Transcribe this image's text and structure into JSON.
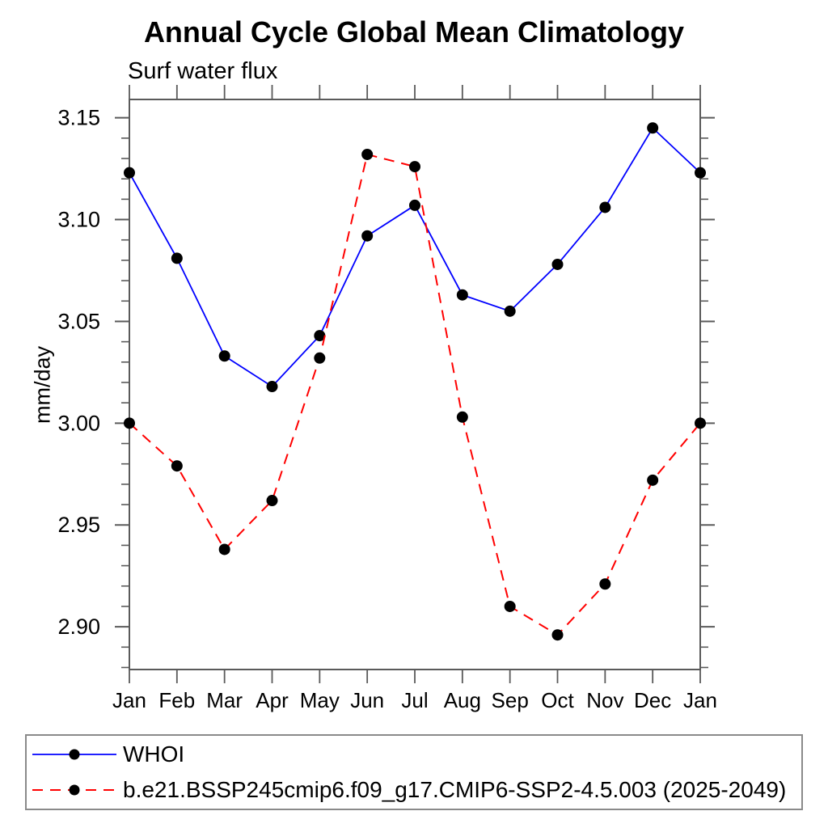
{
  "chart_data": {
    "type": "line",
    "title": "Annual Cycle Global Mean Climatology",
    "subtitle": "Surf water flux",
    "xlabel": "",
    "ylabel": "mm/day",
    "categories": [
      "Jan",
      "Feb",
      "Mar",
      "Apr",
      "May",
      "Jun",
      "Jul",
      "Aug",
      "Sep",
      "Oct",
      "Nov",
      "Dec",
      "Jan"
    ],
    "series": [
      {
        "name": "WHOI",
        "color": "#0000ff",
        "line_style": "solid",
        "marker": "filled-circle",
        "marker_color": "#000000",
        "values": [
          3.123,
          3.081,
          3.033,
          3.018,
          3.043,
          3.092,
          3.107,
          3.063,
          3.055,
          3.078,
          3.106,
          3.145,
          3.123
        ]
      },
      {
        "name": "b.e21.BSSP245cmip6.f09_g17.CMIP6-SSP2-4.5.003 (2025-2049)",
        "color": "#ff0000",
        "line_style": "dashed",
        "marker": "filled-circle",
        "marker_color": "#000000",
        "values": [
          3.0,
          2.979,
          2.938,
          2.962,
          3.032,
          3.132,
          3.126,
          3.003,
          2.91,
          2.896,
          2.921,
          2.972,
          3.0
        ]
      }
    ],
    "ylim": [
      2.879,
      3.159
    ],
    "y_major_ticks": [
      2.9,
      2.95,
      3.0,
      3.05,
      3.1,
      3.15
    ],
    "y_tick_labels": [
      "2.90",
      "2.95",
      "3.00",
      "3.05",
      "3.10",
      "3.15"
    ],
    "y_minor_step": 0.01,
    "grid": false,
    "legend_position": "bottom",
    "axis_color": "#5a5a5a",
    "text_color": "#000000"
  }
}
